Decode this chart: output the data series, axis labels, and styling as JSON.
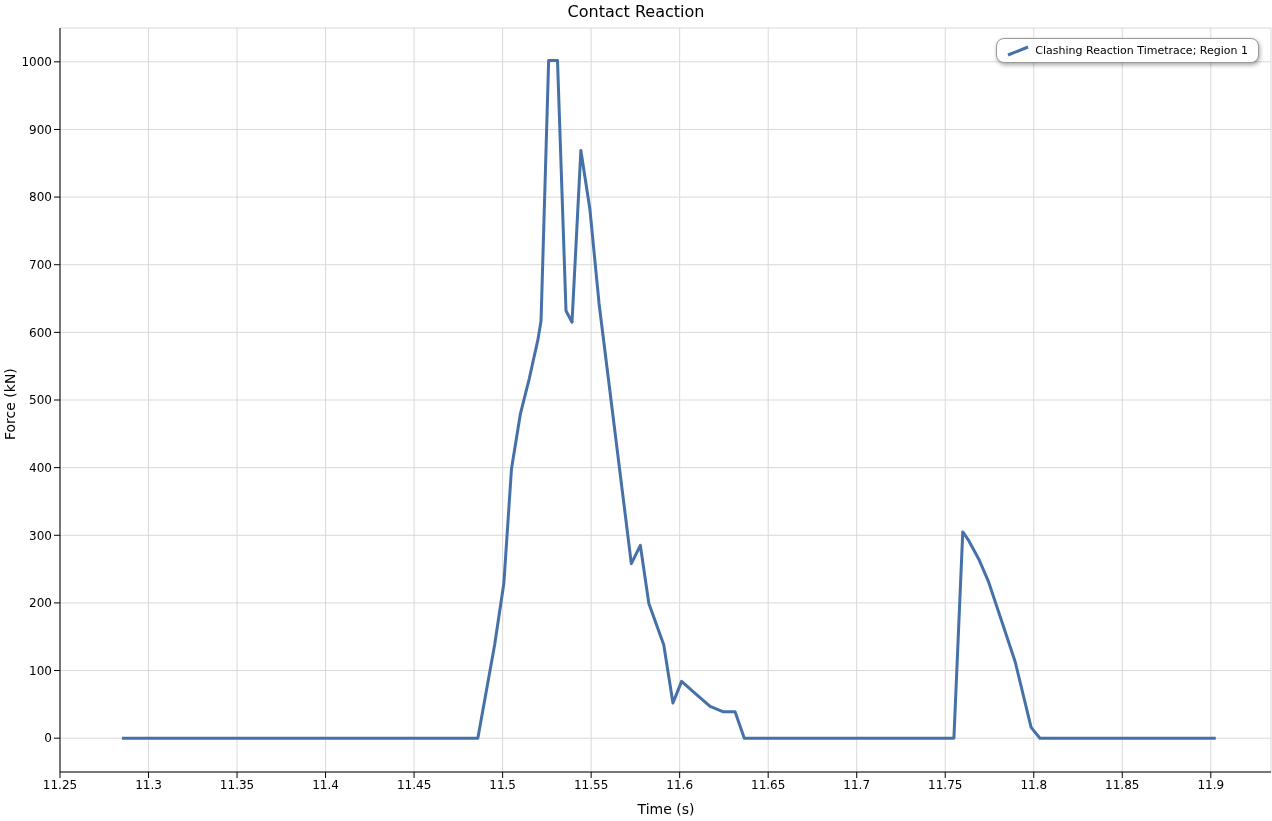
{
  "chart_data": {
    "type": "line",
    "title": "Contact Reaction",
    "xlabel": "Time (s)",
    "ylabel": "Force (kN)",
    "x": [
      11.285,
      11.486,
      11.4955,
      11.5007,
      11.505,
      11.51,
      11.515,
      11.52,
      11.5217,
      11.526,
      11.531,
      11.5358,
      11.5392,
      11.5442,
      11.5493,
      11.5545,
      11.5727,
      11.5778,
      11.5826,
      11.591,
      11.5962,
      11.6011,
      11.6097,
      11.6172,
      11.6247,
      11.6313,
      11.6365,
      11.7549,
      11.7599,
      11.7633,
      11.7689,
      11.7745,
      11.782,
      11.7895,
      11.7985,
      11.8035,
      11.9028
    ],
    "series": [
      {
        "name": "Clashing Reaction Timetrace; Region 1",
        "color": "#4571a8",
        "values": [
          0,
          0,
          138,
          229,
          398,
          479,
          531,
          590,
          617,
          1002,
          1002,
          632,
          615,
          869,
          782,
          642,
          258,
          285,
          199,
          138,
          52,
          84,
          64,
          47,
          39,
          39,
          0,
          0,
          305,
          292,
          265,
          231,
          172,
          113,
          16,
          0,
          0
        ]
      }
    ],
    "xlim": [
      11.25,
      11.934
    ],
    "xticks": [
      11.25,
      11.3,
      11.35,
      11.4,
      11.45,
      11.5,
      11.55,
      11.6,
      11.65,
      11.7,
      11.75,
      11.8,
      11.85,
      11.9
    ],
    "ylim": [
      -50,
      1050
    ],
    "yticks": [
      0,
      100,
      200,
      300,
      400,
      500,
      600,
      700,
      800,
      900,
      1000
    ],
    "grid": true,
    "legend": "top right",
    "marker": "none",
    "line_style": "solid"
  }
}
